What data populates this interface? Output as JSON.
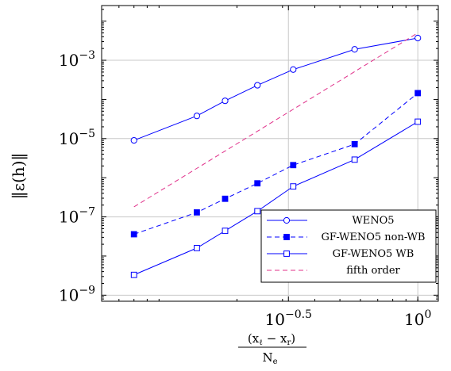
{
  "chart_data": {
    "type": "line",
    "xscale": "log",
    "yscale": "log",
    "xlim": [
      0.06,
      1.2
    ],
    "ylim": [
      7e-10,
      0.025
    ],
    "grid": true,
    "legend_position": "bottom-right",
    "xlabel": {
      "num_a": "(x",
      "num_a_sub": "ℓ",
      "num_mid": " − x",
      "num_b_sub": "r",
      "num_close": ")",
      "den": "N",
      "den_sub": "e"
    },
    "ylabel": "‖ε(h)‖",
    "x_ticks": [
      {
        "value": 0.31623,
        "base": "10",
        "exp": "−0.5"
      },
      {
        "value": 1.0,
        "base": "10",
        "exp": "0"
      }
    ],
    "y_ticks": [
      {
        "value": 0.001,
        "base": "10",
        "exp": "−3"
      },
      {
        "value": 1e-05,
        "base": "10",
        "exp": "−5"
      },
      {
        "value": 1e-07,
        "base": "10",
        "exp": "−7"
      },
      {
        "value": 1e-09,
        "base": "10",
        "exp": "−9"
      }
    ],
    "series": [
      {
        "name": "WENO5",
        "color": "#0000ff",
        "dash": "solid",
        "marker": "circle-open",
        "x": [
          0.08,
          0.14,
          0.18,
          0.24,
          0.33,
          0.57,
          1.0
        ],
        "y": [
          9e-06,
          3.8e-05,
          9.2e-05,
          0.00023,
          0.00058,
          0.0019,
          0.0037
        ]
      },
      {
        "name": "GF-WENO5 non-WB",
        "color": "#0000ff",
        "dash": "dashed",
        "marker": "square-filled",
        "x": [
          0.08,
          0.14,
          0.18,
          0.24,
          0.33,
          0.57,
          1.0
        ],
        "y": [
          3.6e-08,
          1.3e-07,
          2.9e-07,
          7.2e-07,
          2.1e-06,
          7.2e-06,
          0.000145
        ]
      },
      {
        "name": "GF-WENO5 WB",
        "color": "#0000ff",
        "dash": "solid",
        "marker": "square-open",
        "x": [
          0.08,
          0.14,
          0.18,
          0.24,
          0.33,
          0.57,
          1.0
        ],
        "y": [
          3.3e-09,
          1.6e-08,
          4.4e-08,
          1.4e-07,
          6e-07,
          2.9e-06,
          2.7e-05
        ]
      },
      {
        "name": "fifth order",
        "color": "#e0308a",
        "dash": "dashed",
        "marker": "none",
        "x": [
          0.08,
          1.0
        ],
        "y": [
          1.8e-07,
          0.005
        ]
      }
    ]
  }
}
